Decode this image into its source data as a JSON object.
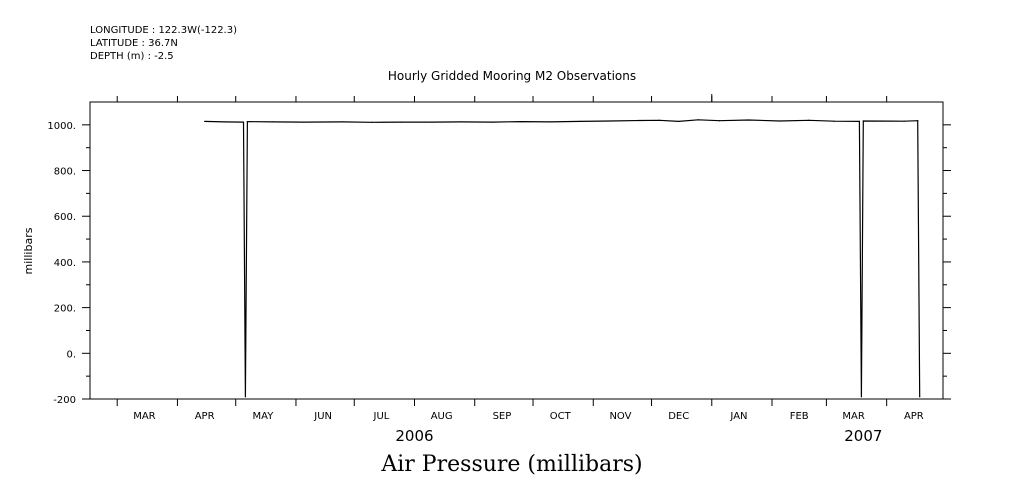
{
  "header": {
    "longitude": "LONGITUDE : 122.3W(-122.3)",
    "latitude": "LATITUDE : 36.7N",
    "depth": "DEPTH (m) : -2.5"
  },
  "footer_title": "Air Pressure (millibars)",
  "chart_data": {
    "type": "line",
    "title": "Hourly Gridded Mooring M2 Observations",
    "xlabel": "",
    "ylabel": "millibars",
    "ylim": [
      -200,
      1100
    ],
    "y_ticks": [
      -200,
      0,
      200,
      400,
      600,
      800,
      1000
    ],
    "y_tick_labels": [
      "-200",
      "0.",
      "200.",
      "400.",
      "600.",
      "800.",
      "1000."
    ],
    "x_range": [
      "2006-02-15",
      "2007-04-30"
    ],
    "month_labels": [
      "MAR",
      "APR",
      "MAY",
      "JUN",
      "JUL",
      "AUG",
      "SEP",
      "OCT",
      "NOV",
      "DEC",
      "JAN",
      "FEB",
      "MAR",
      "APR"
    ],
    "year_labels": [
      "2006",
      "2007"
    ],
    "grid": false,
    "series": [
      {
        "values": [
          {
            "x": "2006-04-15",
            "y": 1015
          },
          {
            "x": "2006-04-25",
            "y": 1013
          },
          {
            "x": "2006-05-05",
            "y": 1012
          },
          {
            "x": "2006-05-06",
            "y": -190
          },
          {
            "x": "2006-05-07",
            "y": 1014
          },
          {
            "x": "2006-05-20",
            "y": 1013
          },
          {
            "x": "2006-06-05",
            "y": 1012
          },
          {
            "x": "2006-06-25",
            "y": 1013
          },
          {
            "x": "2006-07-10",
            "y": 1011
          },
          {
            "x": "2006-07-25",
            "y": 1012
          },
          {
            "x": "2006-08-10",
            "y": 1012
          },
          {
            "x": "2006-08-25",
            "y": 1013
          },
          {
            "x": "2006-09-10",
            "y": 1012
          },
          {
            "x": "2006-09-25",
            "y": 1014
          },
          {
            "x": "2006-10-10",
            "y": 1013
          },
          {
            "x": "2006-10-25",
            "y": 1015
          },
          {
            "x": "2006-11-10",
            "y": 1017
          },
          {
            "x": "2006-11-25",
            "y": 1019
          },
          {
            "x": "2006-12-05",
            "y": 1020
          },
          {
            "x": "2006-12-15",
            "y": 1015
          },
          {
            "x": "2006-12-25",
            "y": 1022
          },
          {
            "x": "2007-01-05",
            "y": 1018
          },
          {
            "x": "2007-01-20",
            "y": 1021
          },
          {
            "x": "2007-02-05",
            "y": 1017
          },
          {
            "x": "2007-02-20",
            "y": 1020
          },
          {
            "x": "2007-03-05",
            "y": 1016
          },
          {
            "x": "2007-03-18",
            "y": 1015
          },
          {
            "x": "2007-03-19",
            "y": -190
          },
          {
            "x": "2007-03-20",
            "y": 1017
          },
          {
            "x": "2007-04-10",
            "y": 1016
          },
          {
            "x": "2007-04-17",
            "y": 1018
          },
          {
            "x": "2007-04-18",
            "y": -190
          }
        ]
      }
    ]
  }
}
